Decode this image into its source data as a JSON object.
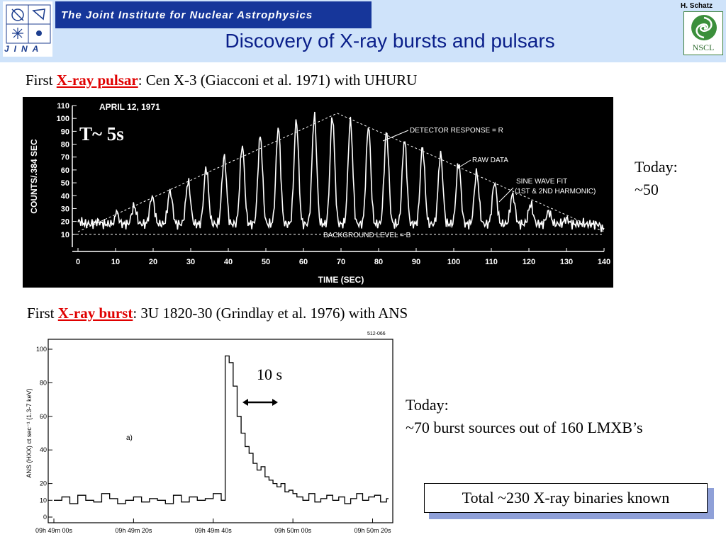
{
  "header": {
    "org_name": "The Joint Institute for Nuclear Astrophysics",
    "jina_label": "JINA",
    "title": "Discovery of X-ray bursts and pulsars",
    "author": "H. Schatz",
    "nscl_label": "NSCL"
  },
  "pulsar_section": {
    "prefix": "First ",
    "highlight": "X-ray pulsar",
    "suffix": ": Cen X-3 (Giacconi et al. 1971) with UHURU",
    "period_label": "T~ 5s",
    "today_label": "Today:",
    "today_value": "~50"
  },
  "burst_section": {
    "prefix": "First ",
    "highlight": "X-ray burst",
    "suffix": ": 3U 1820-30 (Grindlay et al. 1976) with ANS",
    "duration_label": "10 s",
    "today_label": "Today:",
    "today_value": "~70 burst sources out of 160 LMXB’s"
  },
  "total_box": "Total ~230 X-ray binaries known",
  "colors": {
    "highlight": "#e00000",
    "title": "#0a1f8a",
    "banner": "#16369a",
    "header_bg": "#cfe3fa"
  },
  "chart_data": [
    {
      "type": "line",
      "title": "APRIL 12, 1971",
      "xlabel": "TIME (SEC)",
      "ylabel": "COUNTS/.384 SEC",
      "xlim": [
        0,
        140
      ],
      "ylim": [
        0,
        110
      ],
      "xticks": [
        "0",
        "10",
        "20",
        "30",
        "40",
        "50",
        "60",
        "70",
        "80",
        "90",
        "100",
        "110",
        "120",
        "130",
        "140"
      ],
      "yticks": [
        "10",
        "20",
        "30",
        "40",
        "50",
        "60",
        "70",
        "80",
        "90",
        "100",
        "110"
      ],
      "annotations": [
        "DETECTOR RESPONSE = R",
        "RAW DATA",
        "SINE WAVE FIT",
        "(1ST & 2ND HARMONIC)",
        "BACKGROUND LEVEL = B"
      ],
      "background_level": 10,
      "detector_response_peak": {
        "x": 69,
        "y": 104
      },
      "detector_response_start": {
        "x": 0,
        "y": 12
      },
      "detector_response_end": {
        "x": 140,
        "y": 12
      },
      "pulse_period_s": 4.8,
      "pulse_peaks": [
        {
          "x": 10,
          "y": 28
        },
        {
          "x": 15,
          "y": 32
        },
        {
          "x": 20,
          "y": 40
        },
        {
          "x": 25,
          "y": 44
        },
        {
          "x": 30,
          "y": 52
        },
        {
          "x": 35,
          "y": 64
        },
        {
          "x": 40,
          "y": 72
        },
        {
          "x": 45,
          "y": 82
        },
        {
          "x": 50,
          "y": 88
        },
        {
          "x": 55,
          "y": 96
        },
        {
          "x": 60,
          "y": 100
        },
        {
          "x": 65,
          "y": 104
        },
        {
          "x": 70,
          "y": 100
        },
        {
          "x": 75,
          "y": 96
        },
        {
          "x": 80,
          "y": 92
        },
        {
          "x": 85,
          "y": 86
        },
        {
          "x": 90,
          "y": 80
        },
        {
          "x": 95,
          "y": 74
        },
        {
          "x": 100,
          "y": 68
        },
        {
          "x": 105,
          "y": 60
        },
        {
          "x": 110,
          "y": 52
        },
        {
          "x": 115,
          "y": 42
        },
        {
          "x": 120,
          "y": 34
        },
        {
          "x": 125,
          "y": 28
        },
        {
          "x": 130,
          "y": 22
        },
        {
          "x": 135,
          "y": 18
        },
        {
          "x": 140,
          "y": 14
        }
      ]
    },
    {
      "type": "line",
      "title": "",
      "xlabel": "",
      "ylabel": "ANS (HXX) ct sec⁻¹ (1.3-7 keV)",
      "ylim": [
        0,
        100
      ],
      "yticks": [
        "0",
        "10",
        "20",
        "40",
        "60",
        "80",
        "100"
      ],
      "xticks": [
        "09h 49m 00s",
        "09h 49m 20s",
        "09h 49m 40s",
        "09h 50m 00s",
        "09h 50m 20s"
      ],
      "panel_label": "a)",
      "corner_label": "512-066",
      "x_seconds": [
        0,
        4,
        8,
        12,
        16,
        20,
        24,
        28,
        32,
        36,
        40,
        44,
        48,
        52,
        56,
        60,
        64,
        68,
        72,
        76,
        80,
        84
      ],
      "values": [
        10,
        12,
        8,
        13,
        10,
        9,
        14,
        11,
        8,
        10,
        12,
        9,
        11,
        10,
        8,
        13,
        9,
        12,
        10,
        11,
        14,
        10
      ],
      "burst_onset_s": 43,
      "burst_series": {
        "x": [
          43,
          44,
          45,
          46,
          47,
          48,
          49,
          50,
          51,
          52,
          53,
          54,
          55,
          56,
          57,
          58,
          59,
          60
        ],
        "y": [
          96,
          92,
          78,
          60,
          50,
          42,
          38,
          32,
          28,
          30,
          24,
          22,
          20,
          18,
          20,
          15,
          16,
          14
        ]
      },
      "baseline_after": [
        12,
        10,
        14,
        9,
        11,
        13,
        10,
        12,
        8,
        11,
        14,
        10,
        12,
        13,
        9,
        11
      ],
      "duration_marker_s": 10
    }
  ]
}
